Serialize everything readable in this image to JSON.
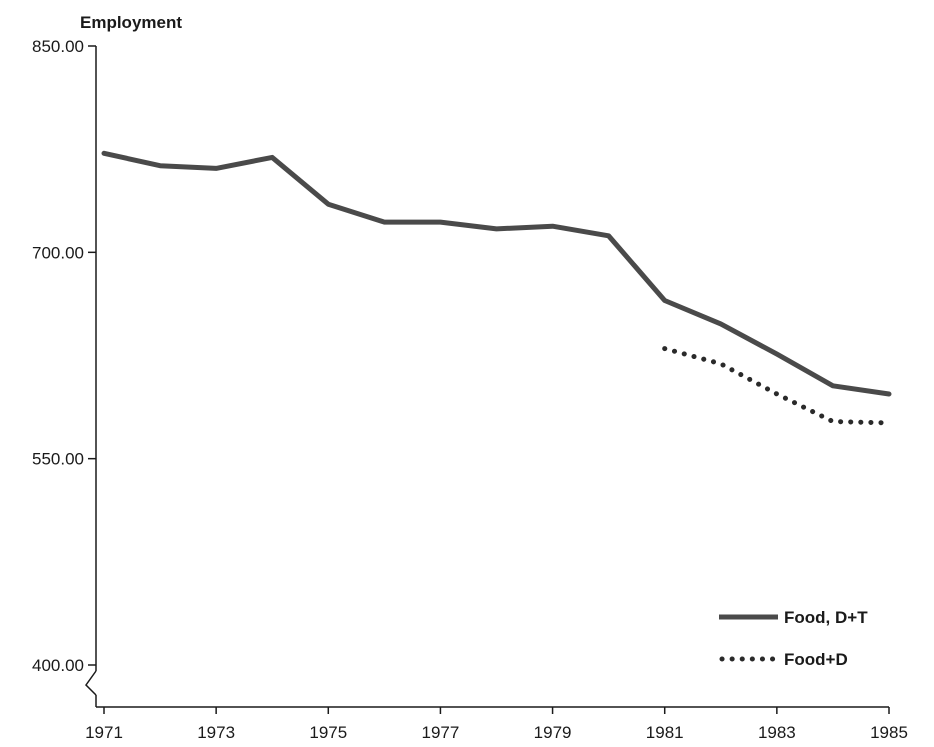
{
  "chart_data": {
    "type": "line",
    "title": "",
    "xlabel": "",
    "ylabel": "Employment",
    "x": [
      1971,
      1972,
      1973,
      1974,
      1975,
      1976,
      1977,
      1978,
      1979,
      1980,
      1981,
      1982,
      1983,
      1984,
      1985
    ],
    "x_tick_labels": [
      "1971",
      "1973",
      "1975",
      "1977",
      "1979",
      "1981",
      "1983",
      "1985"
    ],
    "y_tick_labels": [
      "850.00",
      "700.00",
      "550.00",
      "400.00"
    ],
    "ylim": [
      400,
      850
    ],
    "xlim": [
      1971,
      1985
    ],
    "grid": false,
    "legend_position": "bottom-right",
    "y_axis_break": true,
    "series": [
      {
        "name": "Food, D+T",
        "style": "solid",
        "color": "#4a4a4a",
        "x": [
          1971,
          1972,
          1973,
          1974,
          1975,
          1976,
          1977,
          1978,
          1979,
          1980,
          1981,
          1982,
          1983,
          1984,
          1985
        ],
        "values": [
          772,
          763,
          761,
          769,
          735,
          722,
          722,
          717,
          719,
          712,
          665,
          648,
          626,
          603,
          597
        ]
      },
      {
        "name": "Food+D",
        "style": "dotted",
        "color": "#2a2a2a",
        "x": [
          1981,
          1982,
          1983,
          1984,
          1985
        ],
        "values": [
          630,
          619,
          597,
          577,
          576
        ]
      }
    ]
  }
}
